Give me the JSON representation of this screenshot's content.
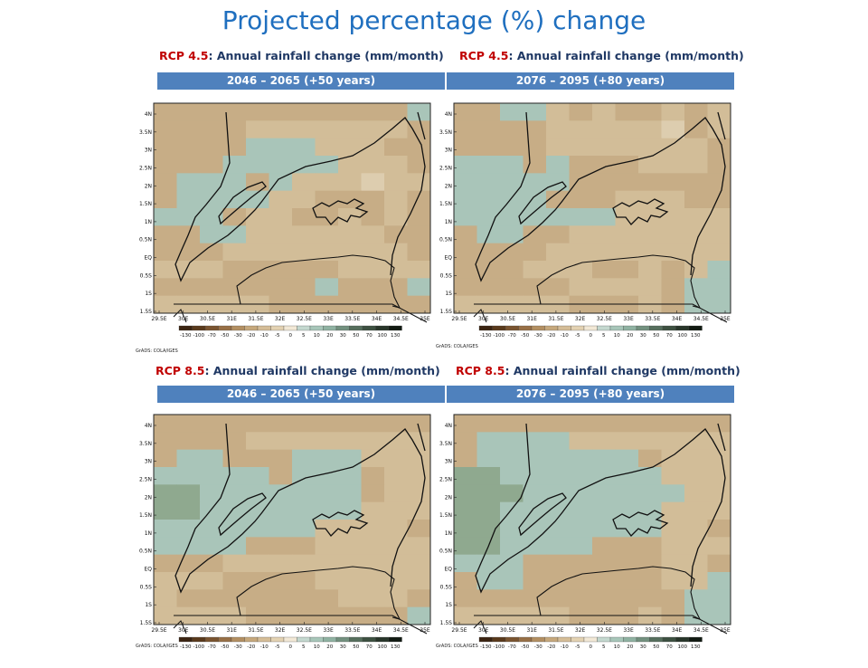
{
  "title": "Projected percentage (%) change",
  "sections": [
    {
      "labels": [
        {
          "rcp": "RCP 4.5",
          "text": ":  Annual rainfall change (mm/month)"
        },
        {
          "rcp": "RCP 4.5",
          "text": ":  Annual rainfall change (mm/month)"
        }
      ],
      "periods": [
        "2046 – 2065  (+50 years)",
        "2076 – 2095  (+80 years)"
      ]
    },
    {
      "labels": [
        {
          "rcp": "RCP 8.5",
          "text": ":  Annual rainfall change (mm/month)"
        },
        {
          "rcp": "RCP 8.5",
          "text": ":  Annual rainfall change (mm/month)"
        }
      ],
      "periods": [
        "2046 – 2065  (+50 years)",
        "2076 – 2095  (+80 years)"
      ]
    }
  ],
  "axes": {
    "lon_ticks": [
      "29.5E",
      "30E",
      "30.5E",
      "31E",
      "31.5E",
      "32E",
      "32.5E",
      "33E",
      "33.5E",
      "34E",
      "34.5E",
      "35E"
    ],
    "lat_ticks": [
      "4N",
      "3.5N",
      "3N",
      "2.5N",
      "2N",
      "1.5N",
      "1N",
      "0.5N",
      "EQ",
      "0.5S",
      "1S",
      "1.5S"
    ]
  },
  "colorbar": {
    "labels": [
      "-130",
      "-100",
      "-70",
      "-50",
      "-30",
      "-20",
      "-10",
      "-5",
      "0",
      "5",
      "10",
      "20",
      "30",
      "50",
      "70",
      "100",
      "130"
    ],
    "colors": [
      "#3b2411",
      "#5a3a1c",
      "#7a5430",
      "#987046",
      "#b38f62",
      "#c6a87c",
      "#d5bd97",
      "#e3d2b2",
      "#f2e8d6",
      "#c4d8cf",
      "#a7c6b9",
      "#8fb2a2",
      "#73917f",
      "#566f5d",
      "#3d5141",
      "#28362a",
      "#111a12"
    ]
  },
  "credit": "GrADS: COLA/IGES",
  "maps": [
    {
      "id": "rcp45-50",
      "grid": [
        "DDDDDDDDDDDE",
        "DDDDCCCCCCCD",
        "DDDDEEECCCDD",
        "DDDEEEEECCCD",
        "DEEEDECCCBCC",
        "DEEEECCDDDCD",
        "EEEDCCDDCDCD",
        "DDEECCCCCCDD",
        "DDDCCCCCCCCD",
        "CCCDDDDDCCCC",
        "DDDDDDDEDDDE",
        "CCCCCDDDDDDD"
      ]
    },
    {
      "id": "rcp45-80",
      "grid": [
        "DDEECDCDDCDC",
        "DDDDCCCCCBDC",
        "DDDDCCCCCCCD",
        "EEEDEDDDCCCD",
        "EEEEEDDDDDDD",
        "EEEEDDDCCCDD",
        "EEEEEEECCCCC",
        "DEEDDCCCCCCC",
        "DDDDCCCCCCCC",
        "DDDCCCDDCDCE",
        "DDDDDCCCCDEE",
        "CCCCCDDDCDEE"
      ]
    },
    {
      "id": "rcp85-50",
      "grid": [
        "DDDDDDDDDDDD",
        "DDDDCCCCCCCC",
        "DEEDDDEEECCC",
        "EEEEEDEEEDCC",
        "FFEEEEEEEDCC",
        "FFEEEEEEECCC",
        "EEEEEEECCCCD",
        "EEEEDDDCCCCC",
        "DDDCCCCCCCCC",
        "CCCDDDDCCCCC",
        "CDDDDDDDCCCD",
        "CCCCDDDDDDDE"
      ]
    },
    {
      "id": "rcp85-80",
      "grid": [
        "DDDDDDDDDDDD",
        "DEEEECCCCCCC",
        "DEEEEEEEDCCC",
        "FFEEEEEEECCC",
        "FFFEEEEEEECC",
        "FFEEEEEEECCC",
        "FFEEEEEEECCD",
        "FFEEEEDDDCCC",
        "EEEDDDDDDCCD",
        "DEEDDDDDDCCE",
        "DDDDDDDDDDEE",
        "CCCCCDDDCDEE"
      ]
    }
  ]
}
